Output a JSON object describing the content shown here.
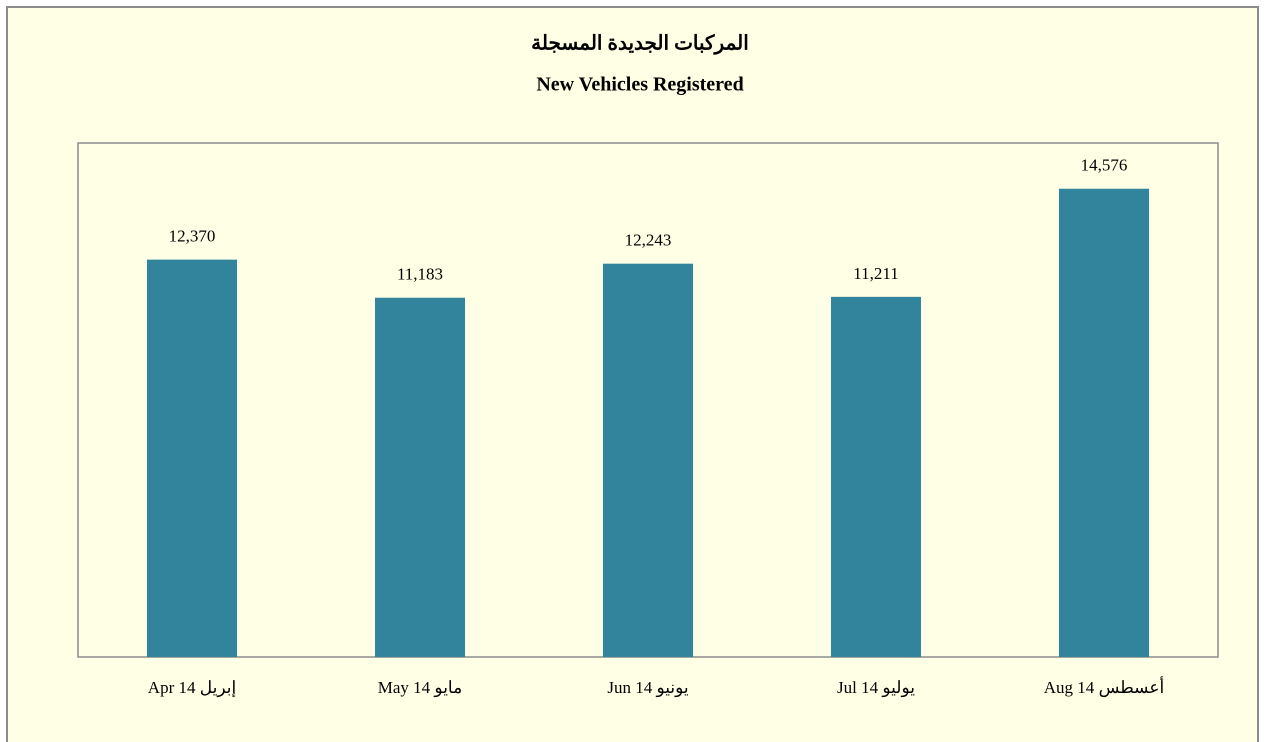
{
  "chart_data": {
    "type": "bar",
    "title": "المركبات الجديدة المسجلة",
    "subtitle": "New Vehicles Registered",
    "categories": [
      "Apr 14 إبريل",
      "May 14 مايو",
      "Jun 14 يونيو",
      "Jul 14 يوليو",
      "Aug 14 أعسطس"
    ],
    "values": [
      12370,
      11183,
      12243,
      11211,
      14576
    ],
    "value_labels": [
      "12,370",
      "11,183",
      "12,243",
      "11,211",
      "14,576"
    ],
    "color": "#31849b",
    "ylim": [
      0,
      16000
    ]
  }
}
